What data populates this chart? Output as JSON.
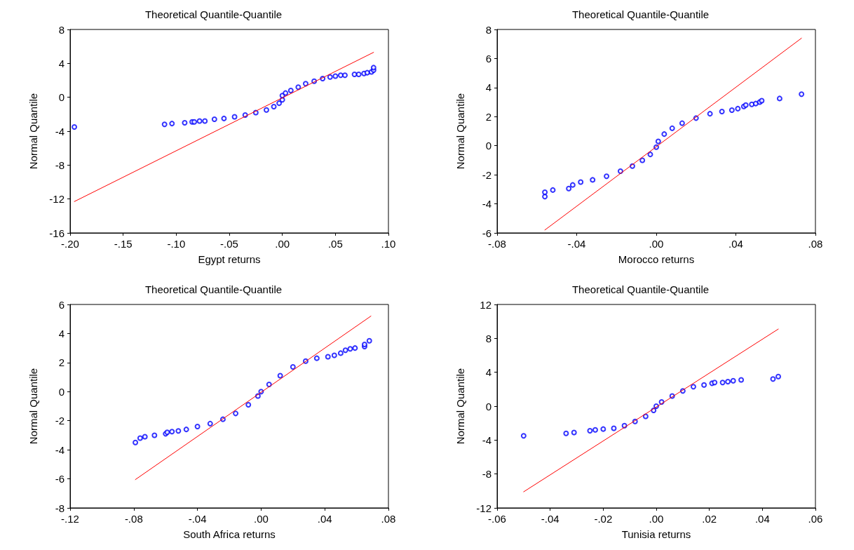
{
  "chart_data": [
    {
      "type": "scatter",
      "title": "Theoretical Quantile-Quantile",
      "xlabel": "Egypt returns",
      "ylabel": "Normal Quantile",
      "grid": false,
      "xlim": [
        -0.2,
        0.1
      ],
      "xticks": [
        {
          "value": -0.2,
          "label": "-.20"
        },
        {
          "value": -0.15,
          "label": "-.15"
        },
        {
          "value": -0.1,
          "label": "-.10"
        },
        {
          "value": -0.05,
          "label": "-.05"
        },
        {
          "value": 0,
          "label": ".00"
        },
        {
          "value": 0.05,
          "label": ".05"
        },
        {
          "value": 0.1,
          "label": ".10"
        }
      ],
      "ylim": [
        -16,
        8
      ],
      "yticks": [
        -16,
        -12,
        -8,
        -4,
        0,
        4,
        8
      ],
      "series": [
        {
          "marker": "circle",
          "color": "#0000ff",
          "x": [
            -0.196,
            -0.111,
            -0.104,
            -0.092,
            -0.085,
            -0.083,
            -0.078,
            -0.073,
            -0.064,
            -0.055,
            -0.045,
            -0.035,
            -0.025,
            -0.015,
            -0.008,
            -0.003,
            0,
            0,
            0.003,
            0.008,
            0.015,
            0.022,
            0.03,
            0.038,
            0.045,
            0.05,
            0.055,
            0.059,
            0.068,
            0.072,
            0.077,
            0.08,
            0.084,
            0.086,
            0.086
          ],
          "values": [
            -3.5,
            -3.2,
            -3.1,
            -3.0,
            -2.9,
            -2.9,
            -2.8,
            -2.8,
            -2.6,
            -2.5,
            -2.3,
            -2.1,
            -1.8,
            -1.5,
            -1.1,
            -0.7,
            -0.3,
            0.2,
            0.5,
            0.8,
            1.2,
            1.6,
            1.9,
            2.2,
            2.4,
            2.5,
            2.6,
            2.6,
            2.7,
            2.7,
            2.8,
            2.9,
            3.0,
            3.2,
            3.5
          ]
        },
        {
          "type": "line",
          "marker": "none",
          "color": "#ff0000",
          "x": [
            -0.196,
            0.086
          ],
          "values": [
            -12.3,
            5.3
          ]
        }
      ]
    },
    {
      "type": "scatter",
      "title": "Theoretical Quantile-Quantile",
      "xlabel": "Morocco returns",
      "ylabel": "Normal Quantile",
      "grid": false,
      "xlim": [
        -0.08,
        0.08
      ],
      "xticks": [
        {
          "value": -0.08,
          "label": "-.08"
        },
        {
          "value": -0.04,
          "label": "-.04"
        },
        {
          "value": 0,
          "label": ".00"
        },
        {
          "value": 0.04,
          "label": ".04"
        },
        {
          "value": 0.08,
          "label": ".08"
        }
      ],
      "ylim": [
        -6,
        8
      ],
      "yticks": [
        -6,
        -4,
        -2,
        0,
        2,
        4,
        6,
        8
      ],
      "series": [
        {
          "marker": "circle",
          "color": "#0000ff",
          "x": [
            -0.056,
            -0.056,
            -0.052,
            -0.044,
            -0.042,
            -0.038,
            -0.032,
            -0.025,
            -0.018,
            -0.012,
            -0.007,
            -0.003,
            0,
            0.001,
            0.004,
            0.008,
            0.013,
            0.02,
            0.027,
            0.033,
            0.038,
            0.041,
            0.044,
            0.045,
            0.048,
            0.05,
            0.052,
            0.053,
            0.062,
            0.073
          ],
          "values": [
            -3.5,
            -3.2,
            -3.05,
            -2.95,
            -2.7,
            -2.5,
            -2.35,
            -2.1,
            -1.75,
            -1.4,
            -1.0,
            -0.6,
            -0.1,
            0.3,
            0.8,
            1.2,
            1.55,
            1.9,
            2.2,
            2.35,
            2.45,
            2.55,
            2.7,
            2.8,
            2.85,
            2.9,
            3.0,
            3.1,
            3.25,
            3.55
          ]
        },
        {
          "type": "line",
          "marker": "none",
          "color": "#ff0000",
          "x": [
            -0.056,
            0.073
          ],
          "values": [
            -5.8,
            7.4
          ]
        }
      ]
    },
    {
      "type": "scatter",
      "title": "Theoretical Quantile-Quantile",
      "xlabel": "South Africa returns",
      "ylabel": "Normal Quantile",
      "grid": false,
      "xlim": [
        -0.12,
        0.08
      ],
      "xticks": [
        {
          "value": -0.12,
          "label": "-.12"
        },
        {
          "value": -0.08,
          "label": "-.08"
        },
        {
          "value": -0.04,
          "label": "-.04"
        },
        {
          "value": 0,
          "label": ".00"
        },
        {
          "value": 0.04,
          "label": ".04"
        },
        {
          "value": 0.08,
          "label": ".08"
        }
      ],
      "ylim": [
        -8,
        6
      ],
      "yticks": [
        -8,
        -6,
        -4,
        -2,
        0,
        2,
        4,
        6
      ],
      "series": [
        {
          "marker": "circle",
          "color": "#0000ff",
          "x": [
            -0.079,
            -0.076,
            -0.073,
            -0.067,
            -0.06,
            -0.059,
            -0.056,
            -0.052,
            -0.047,
            -0.04,
            -0.032,
            -0.024,
            -0.016,
            -0.008,
            -0.002,
            0,
            0.005,
            0.012,
            0.02,
            0.028,
            0.035,
            0.042,
            0.046,
            0.05,
            0.053,
            0.056,
            0.059,
            0.065,
            0.065,
            0.068
          ],
          "values": [
            -3.5,
            -3.2,
            -3.1,
            -3.0,
            -2.9,
            -2.8,
            -2.75,
            -2.7,
            -2.6,
            -2.4,
            -2.2,
            -1.9,
            -1.5,
            -0.9,
            -0.3,
            0,
            0.5,
            1.1,
            1.7,
            2.1,
            2.3,
            2.4,
            2.5,
            2.65,
            2.85,
            2.95,
            3.0,
            3.1,
            3.25,
            3.5
          ]
        },
        {
          "type": "line",
          "marker": "none",
          "color": "#ff0000",
          "x": [
            -0.079,
            0.069
          ],
          "values": [
            -6.05,
            5.2
          ]
        }
      ]
    },
    {
      "type": "scatter",
      "title": "Theoretical Quantile-Quantile",
      "xlabel": "Tunisia returns",
      "ylabel": "Normal Quantile",
      "grid": false,
      "xlim": [
        -0.06,
        0.06
      ],
      "xticks": [
        {
          "value": -0.06,
          "label": "-.06"
        },
        {
          "value": -0.04,
          "label": "-.04"
        },
        {
          "value": -0.02,
          "label": "-.02"
        },
        {
          "value": 0,
          "label": ".00"
        },
        {
          "value": 0.02,
          "label": ".02"
        },
        {
          "value": 0.04,
          "label": ".04"
        },
        {
          "value": 0.06,
          "label": ".06"
        }
      ],
      "ylim": [
        -12,
        12
      ],
      "yticks": [
        -12,
        -8,
        -4,
        0,
        4,
        8,
        12
      ],
      "series": [
        {
          "marker": "circle",
          "color": "#0000ff",
          "x": [
            -0.05,
            -0.034,
            -0.031,
            -0.025,
            -0.023,
            -0.02,
            -0.016,
            -0.012,
            -0.008,
            -0.004,
            -0.001,
            0,
            0.002,
            0.006,
            0.01,
            0.014,
            0.018,
            0.021,
            0.022,
            0.025,
            0.027,
            0.029,
            0.032,
            0.044,
            0.046
          ],
          "values": [
            -3.5,
            -3.2,
            -3.1,
            -2.9,
            -2.8,
            -2.7,
            -2.6,
            -2.3,
            -1.8,
            -1.2,
            -0.5,
            0,
            0.5,
            1.2,
            1.8,
            2.3,
            2.5,
            2.7,
            2.8,
            2.8,
            2.9,
            3.0,
            3.1,
            3.2,
            3.5
          ]
        },
        {
          "type": "line",
          "marker": "none",
          "color": "#ff0000",
          "x": [
            -0.05,
            0.046
          ],
          "values": [
            -10.1,
            9.1
          ]
        }
      ]
    }
  ]
}
